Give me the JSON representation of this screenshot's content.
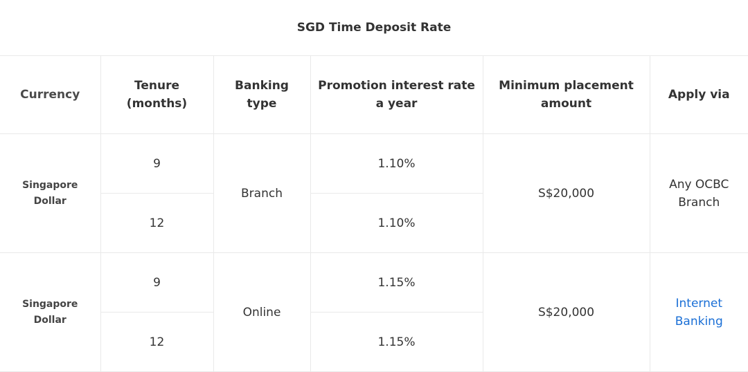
{
  "title": "SGD Time Deposit Rate",
  "headers": {
    "currency": "Currency",
    "tenure_l1": "Tenure",
    "tenure_l2": "(months)",
    "banking_l1": "Banking",
    "banking_l2": "type",
    "rate_l1": "Promotion interest rate",
    "rate_l2": "a year",
    "min_l1": "Minimum placement",
    "min_l2": "amount",
    "apply": "Apply via"
  },
  "groups": [
    {
      "currency_l1": "Singapore",
      "currency_l2": "Dollar",
      "banking_type": "Branch",
      "min_amount": "S$20,000",
      "apply_l1": "Any OCBC",
      "apply_l2": "Branch",
      "rows": [
        {
          "tenure": "9",
          "rate": "1.10%"
        },
        {
          "tenure": "12",
          "rate": "1.10%"
        }
      ]
    },
    {
      "currency_l1": "Singapore",
      "currency_l2": "Dollar",
      "banking_type": "Online",
      "min_amount": "S$20,000",
      "apply_l1": "Internet",
      "apply_l2": "Banking",
      "rows": [
        {
          "tenure": "9",
          "rate": "1.15%"
        },
        {
          "tenure": "12",
          "rate": "1.15%"
        }
      ]
    }
  ],
  "colors": {
    "link": "#1a6fd6",
    "border": "#e9e9e9",
    "text": "#333333"
  }
}
